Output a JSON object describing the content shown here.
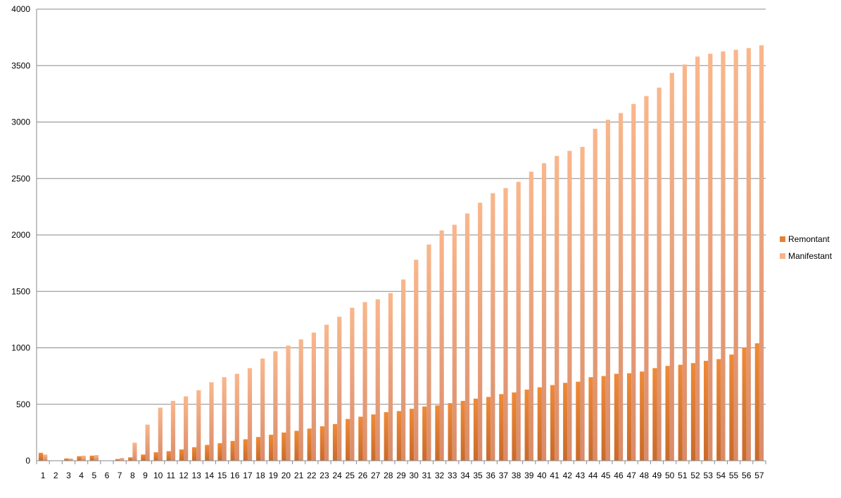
{
  "chart_data": {
    "type": "bar",
    "title": "",
    "xlabel": "",
    "ylabel": "",
    "ylim": [
      0,
      4000
    ],
    "yticks": [
      0,
      500,
      1000,
      1500,
      2000,
      2500,
      3000,
      3500,
      4000
    ],
    "grid": true,
    "legend_position": "right",
    "categories": [
      "1",
      "2",
      "3",
      "4",
      "5",
      "6",
      "7",
      "8",
      "9",
      "10",
      "11",
      "12",
      "13",
      "14",
      "15",
      "16",
      "17",
      "18",
      "19",
      "20",
      "21",
      "22",
      "23",
      "24",
      "25",
      "26",
      "27",
      "28",
      "29",
      "30",
      "31",
      "32",
      "33",
      "34",
      "35",
      "36",
      "37",
      "38",
      "39",
      "40",
      "41",
      "42",
      "43",
      "44",
      "45",
      "46",
      "47",
      "48",
      "49",
      "50",
      "51",
      "52",
      "53",
      "54",
      "55",
      "56",
      "57"
    ],
    "series": [
      {
        "name": "Remontant",
        "color": "#e8802e",
        "values": [
          70,
          0,
          20,
          40,
          45,
          0,
          15,
          30,
          55,
          75,
          85,
          100,
          120,
          140,
          155,
          175,
          190,
          210,
          230,
          250,
          265,
          285,
          305,
          325,
          370,
          390,
          410,
          430,
          440,
          460,
          480,
          490,
          510,
          530,
          550,
          565,
          590,
          605,
          630,
          650,
          670,
          690,
          700,
          740,
          750,
          770,
          775,
          790,
          820,
          840,
          850,
          865,
          885,
          900,
          940,
          1000,
          1040
        ]
      },
      {
        "name": "Manifestant",
        "color": "#f7b48a",
        "values": [
          55,
          0,
          20,
          45,
          50,
          0,
          25,
          160,
          320,
          470,
          530,
          570,
          625,
          695,
          740,
          770,
          820,
          905,
          970,
          1020,
          1075,
          1135,
          1205,
          1275,
          1355,
          1405,
          1430,
          1485,
          1605,
          1780,
          1915,
          2040,
          2090,
          2190,
          2285,
          2370,
          2415,
          2470,
          2560,
          2635,
          2700,
          2745,
          2780,
          2940,
          3020,
          3080,
          3160,
          3230,
          3305,
          3435,
          3510,
          3580,
          3605,
          3625,
          3640,
          3655,
          3680
        ]
      }
    ]
  }
}
